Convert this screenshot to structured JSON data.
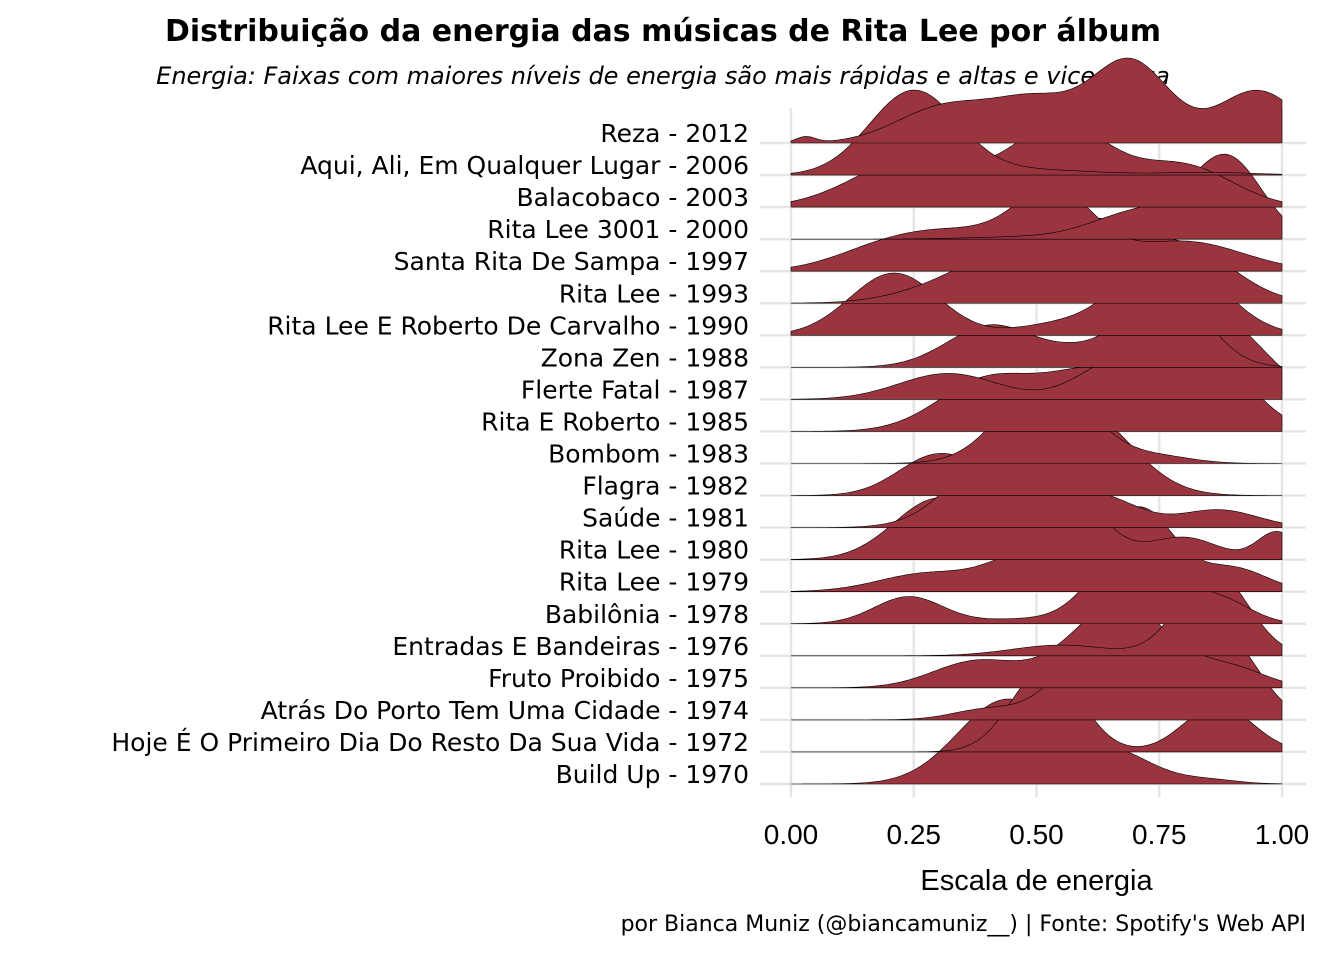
{
  "title": "Distribuição da energia das músicas de Rita Lee por álbum",
  "subtitle": "Energia: Faixas com maiores níveis de energia são mais rápidas e altas e vice-versa",
  "caption": "por Bianca Muniz (@biancamuniz__) | Fonte: Spotify's Web API",
  "colors": {
    "fill": "#9a3540",
    "outline": "#000000",
    "grid": "#e5e5e5"
  },
  "chart_data": {
    "type": "ridgeline",
    "xlabel": "Escala de energia",
    "ylabel": "",
    "xlim": [
      0,
      1
    ],
    "xticks": [
      "0.00",
      "0.25",
      "0.50",
      "0.75",
      "1.00"
    ],
    "xtick_values": [
      0,
      0.25,
      0.5,
      0.75,
      1.0
    ],
    "grid": true,
    "series": [
      {
        "name": "Reza - 2012",
        "peaks": [
          [
            0.03,
            0.02,
            0.04
          ],
          [
            0.32,
            0.1,
            0.25
          ],
          [
            0.5,
            0.08,
            0.25
          ],
          [
            0.69,
            0.08,
            0.55
          ],
          [
            0.95,
            0.08,
            0.35
          ]
        ]
      },
      {
        "name": "Aqui, Ali, Em Qualquer Lugar - 2006",
        "peaks": [
          [
            0.25,
            0.09,
            1.0
          ],
          [
            0.5,
            0.12,
            0.06
          ],
          [
            0.85,
            0.1,
            0.03
          ]
        ]
      },
      {
        "name": "Balacobaco - 2003",
        "peaks": [
          [
            0.25,
            0.12,
            0.3
          ],
          [
            0.55,
            0.1,
            0.5
          ],
          [
            0.8,
            0.1,
            0.25
          ]
        ]
      },
      {
        "name": "Rita Lee 3001 - 2000",
        "peaks": [
          [
            0.45,
            0.1,
            0.02
          ],
          [
            0.72,
            0.1,
            0.3
          ],
          [
            0.89,
            0.07,
            0.8
          ]
        ]
      },
      {
        "name": "Santa Rita De Sampa - 1997",
        "peaks": [
          [
            0.18,
            0.1,
            0.15
          ],
          [
            0.35,
            0.12,
            0.3
          ],
          [
            0.54,
            0.08,
            0.6
          ],
          [
            0.8,
            0.12,
            0.25
          ]
        ]
      },
      {
        "name": "Rita Lee - 1993",
        "peaks": [
          [
            0.3,
            0.1,
            0.08
          ],
          [
            0.45,
            0.1,
            0.32
          ],
          [
            0.62,
            0.08,
            0.45
          ],
          [
            0.8,
            0.1,
            0.4
          ]
        ]
      },
      {
        "name": "Rita Lee E Roberto De Carvalho - 1990",
        "peaks": [
          [
            0.21,
            0.09,
            0.55
          ],
          [
            0.53,
            0.08,
            0.08
          ],
          [
            0.77,
            0.1,
            0.75
          ]
        ]
      },
      {
        "name": "Zona Zen - 1988",
        "peaks": [
          [
            0.41,
            0.09,
            0.45
          ],
          [
            0.58,
            0.06,
            0.12
          ],
          [
            0.76,
            0.08,
            0.9
          ]
        ]
      },
      {
        "name": "Flerte Fatal - 1987",
        "peaks": [
          [
            0.32,
            0.1,
            0.28
          ],
          [
            0.66,
            0.08,
            0.35
          ],
          [
            0.86,
            0.1,
            0.9
          ]
        ]
      },
      {
        "name": "Rita E Roberto - 1985",
        "peaks": [
          [
            0.4,
            0.1,
            0.45
          ],
          [
            0.62,
            0.1,
            0.5
          ],
          [
            0.84,
            0.09,
            0.7
          ]
        ]
      },
      {
        "name": "Bombom - 1983",
        "peaks": [
          [
            0.52,
            0.09,
            1.0
          ],
          [
            0.75,
            0.07,
            0.08
          ]
        ]
      },
      {
        "name": "Flagra - 1982",
        "peaks": [
          [
            0.3,
            0.08,
            0.48
          ],
          [
            0.59,
            0.1,
            1.0
          ]
        ]
      },
      {
        "name": "Saúde - 1981",
        "peaks": [
          [
            0.44,
            0.1,
            0.95
          ],
          [
            0.65,
            0.07,
            0.25
          ],
          [
            0.87,
            0.08,
            0.2
          ]
        ]
      },
      {
        "name": "Rita Lee - 1980",
        "peaks": [
          [
            0.3,
            0.09,
            0.55
          ],
          [
            0.54,
            0.08,
            0.75
          ],
          [
            0.8,
            0.07,
            0.2
          ],
          [
            0.99,
            0.04,
            0.25
          ]
        ]
      },
      {
        "name": "Rita Lee - 1979",
        "peaks": [
          [
            0.28,
            0.1,
            0.22
          ],
          [
            0.49,
            0.08,
            0.45
          ],
          [
            0.71,
            0.07,
            1.0
          ],
          [
            0.9,
            0.07,
            0.28
          ]
        ]
      },
      {
        "name": "Babilônia - 1978",
        "peaks": [
          [
            0.24,
            0.07,
            0.32
          ],
          [
            0.46,
            0.08,
            0.05
          ],
          [
            0.7,
            0.08,
            1.0
          ],
          [
            0.88,
            0.06,
            0.25
          ]
        ]
      },
      {
        "name": "Entradas E Bandeiras - 1976",
        "peaks": [
          [
            0.55,
            0.1,
            0.12
          ],
          [
            0.86,
            0.07,
            0.95
          ]
        ]
      },
      {
        "name": "Fruto Proibido - 1975",
        "peaks": [
          [
            0.38,
            0.09,
            0.3
          ],
          [
            0.67,
            0.1,
            0.95
          ],
          [
            0.9,
            0.07,
            0.2
          ]
        ]
      },
      {
        "name": "Atrás Do Porto Tem Uma Cidade - 1974",
        "peaks": [
          [
            0.4,
            0.07,
            0.12
          ],
          [
            0.62,
            0.08,
            0.8
          ],
          [
            0.88,
            0.07,
            0.95
          ]
        ]
      },
      {
        "name": "Hoje É O Primeiro Dia Do Resto Da Sua Vida - 1972",
        "peaks": [
          [
            0.52,
            0.07,
            1.0
          ],
          [
            0.87,
            0.07,
            0.55
          ]
        ]
      },
      {
        "name": "Build Up - 1970",
        "peaks": [
          [
            0.44,
            0.1,
            1.0
          ],
          [
            0.66,
            0.08,
            0.35
          ],
          [
            0.85,
            0.06,
            0.05
          ]
        ]
      }
    ]
  }
}
